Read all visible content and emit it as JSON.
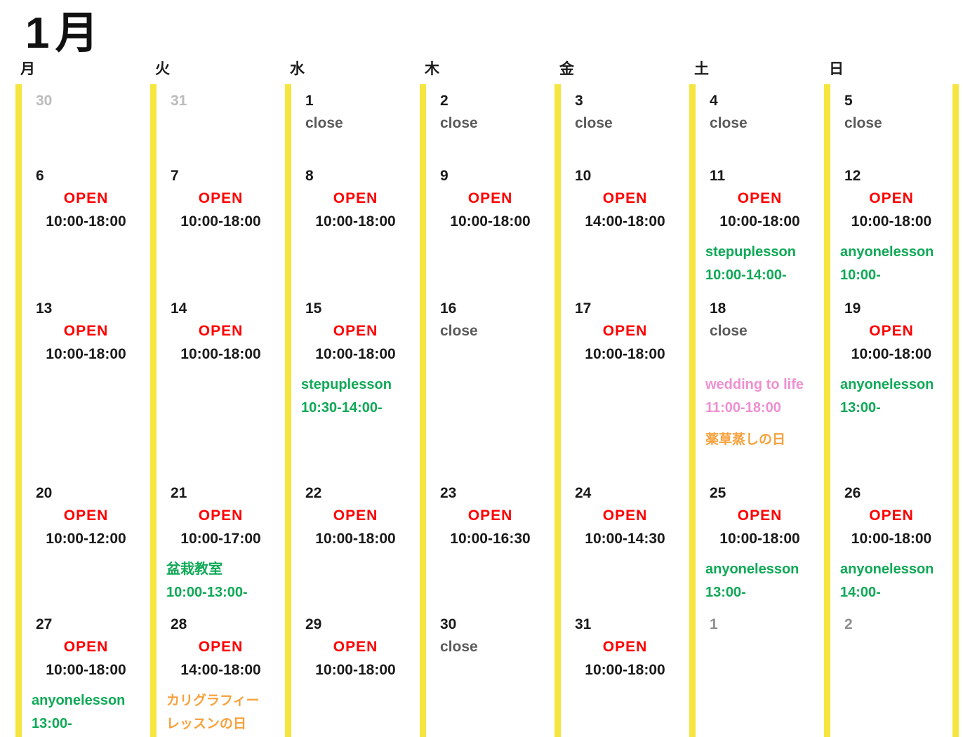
{
  "title": "1月",
  "weekdays": [
    "月",
    "火",
    "水",
    "木",
    "金",
    "土",
    "日"
  ],
  "colors": {
    "ink": "#1a1a1a",
    "open": "#ff0000",
    "close_text": "#5a5a5a",
    "lesson_green": "#0fa956",
    "lesson_pink": "#ee8fd0",
    "note_orange": "#f8a13c",
    "other_prev": "#bcbcbc",
    "other_next": "#8f8f8f",
    "bar_yellow": "#f5e53e"
  },
  "weeks": [
    {
      "cells": [
        {
          "day": "30",
          "other": "prev"
        },
        {
          "day": "31",
          "other": "prev"
        },
        {
          "day": "1",
          "status": "close"
        },
        {
          "day": "2",
          "status": "close"
        },
        {
          "day": "3",
          "status": "close"
        },
        {
          "day": "4",
          "status": "close"
        },
        {
          "day": "5",
          "status": "close"
        }
      ]
    },
    {
      "cells": [
        {
          "day": "6",
          "status": "OPEN",
          "time": "10:00-18:00"
        },
        {
          "day": "7",
          "status": "OPEN",
          "time": "10:00-18:00"
        },
        {
          "day": "8",
          "status": "OPEN",
          "time": "10:00-18:00"
        },
        {
          "day": "9",
          "status": "OPEN",
          "time": "10:00-18:00"
        },
        {
          "day": "10",
          "status": "OPEN",
          "time": "14:00-18:00"
        },
        {
          "day": "11",
          "status": "OPEN",
          "time": "10:00-18:00",
          "notes": [
            {
              "color": "green",
              "lines": [
                "stepuplesson",
                "10:00-14:00-"
              ]
            }
          ]
        },
        {
          "day": "12",
          "status": "OPEN",
          "time": "10:00-18:00",
          "notes": [
            {
              "color": "green",
              "lines": [
                "anyonelesson",
                "10:00-"
              ]
            }
          ]
        }
      ]
    },
    {
      "cells": [
        {
          "day": "13",
          "status": "OPEN",
          "time": "10:00-18:00"
        },
        {
          "day": "14",
          "status": "OPEN",
          "time": "10:00-18:00"
        },
        {
          "day": "15",
          "status": "OPEN",
          "time": "10:00-18:00",
          "notes": [
            {
              "color": "green",
              "lines": [
                "stepuplesson",
                "10:30-14:00-"
              ]
            }
          ]
        },
        {
          "day": "16",
          "status": "close"
        },
        {
          "day": "17",
          "status": "OPEN",
          "time": "10:00-18:00"
        },
        {
          "day": "18",
          "status": "close",
          "notes": [
            {
              "color": "pink",
              "lines": [
                "wedding to life",
                "11:00-18:00"
              ]
            },
            {
              "color": "orange",
              "lines": [
                "薬草蒸しの日"
              ]
            }
          ]
        },
        {
          "day": "19",
          "status": "OPEN",
          "time": "10:00-18:00",
          "notes": [
            {
              "color": "green",
              "lines": [
                "anyonelesson",
                "13:00-"
              ]
            }
          ]
        }
      ]
    },
    {
      "cells": [
        {
          "day": "20",
          "status": "OPEN",
          "time": "10:00-12:00"
        },
        {
          "day": "21",
          "status": "OPEN",
          "time": "10:00-17:00",
          "notes": [
            {
              "color": "green",
              "lines": [
                "盆栽教室",
                "10:00-13:00-"
              ]
            }
          ]
        },
        {
          "day": "22",
          "status": "OPEN",
          "time": "10:00-18:00"
        },
        {
          "day": "23",
          "status": "OPEN",
          "time": "10:00-16:30"
        },
        {
          "day": "24",
          "status": "OPEN",
          "time": "10:00-14:30"
        },
        {
          "day": "25",
          "status": "OPEN",
          "time": "10:00-18:00",
          "notes": [
            {
              "color": "green",
              "lines": [
                "anyonelesson",
                "13:00-"
              ]
            }
          ]
        },
        {
          "day": "26",
          "status": "OPEN",
          "time": "10:00-18:00",
          "notes": [
            {
              "color": "green",
              "lines": [
                "anyonelesson",
                "14:00-"
              ]
            }
          ]
        }
      ]
    },
    {
      "cells": [
        {
          "day": "27",
          "status": "OPEN",
          "time": "10:00-18:00",
          "notes": [
            {
              "color": "green",
              "lines": [
                "anyonelesson",
                "13:00-"
              ]
            }
          ]
        },
        {
          "day": "28",
          "status": "OPEN",
          "time": "14:00-18:00",
          "notes": [
            {
              "color": "orange",
              "lines": [
                "カリグラフィー",
                "レッスンの日"
              ]
            }
          ]
        },
        {
          "day": "29",
          "status": "OPEN",
          "time": "10:00-18:00"
        },
        {
          "day": "30",
          "status": "close"
        },
        {
          "day": "31",
          "status": "OPEN",
          "time": "10:00-18:00"
        },
        {
          "day": "1",
          "other": "next"
        },
        {
          "day": "2",
          "other": "next"
        }
      ]
    }
  ]
}
